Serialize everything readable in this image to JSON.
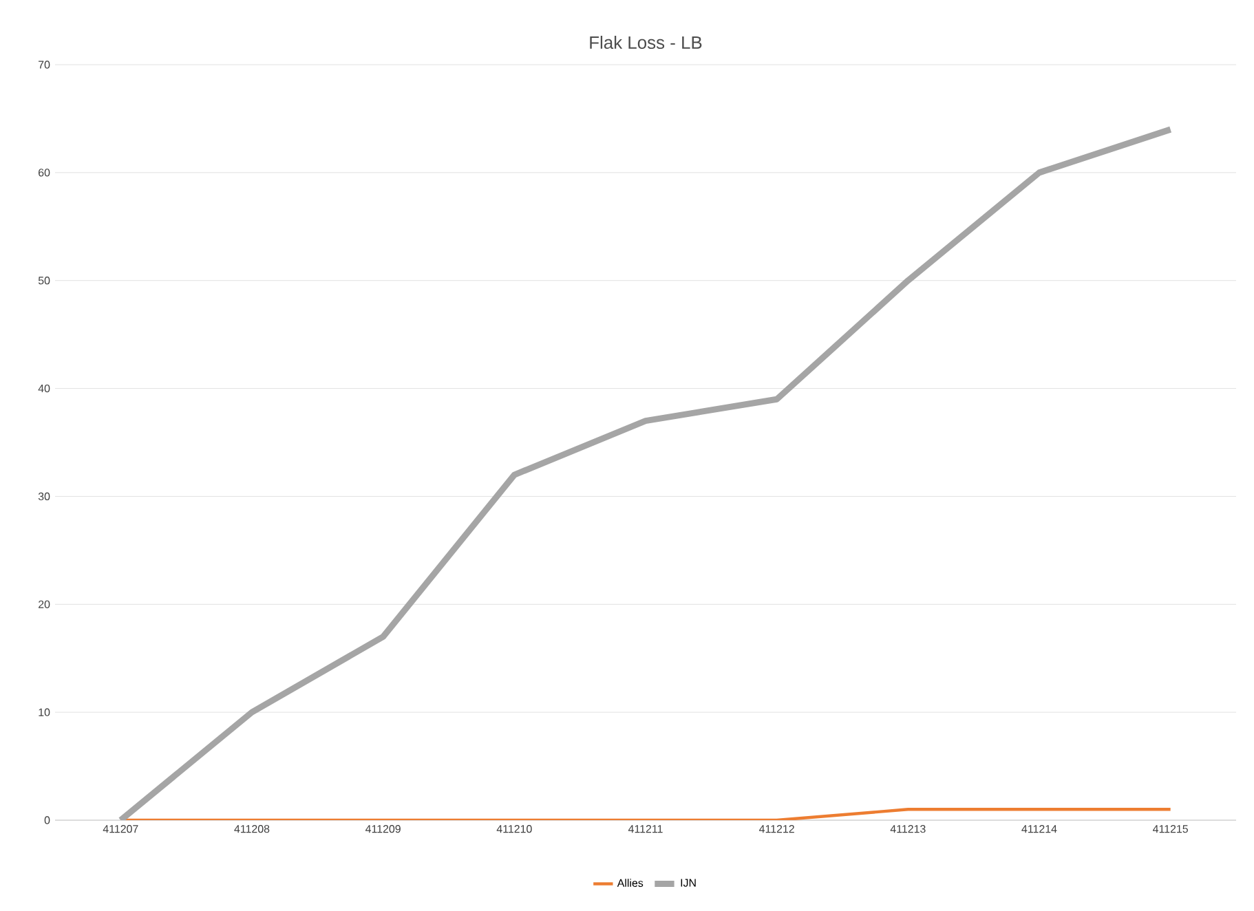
{
  "chart_data": {
    "type": "line",
    "title": "Flak Loss - LB",
    "categories": [
      "411207",
      "411208",
      "411209",
      "411210",
      "411211",
      "411212",
      "411213",
      "411214",
      "411215"
    ],
    "series": [
      {
        "name": "Allies",
        "color": "#ed7d31",
        "values": [
          0,
          0,
          0,
          0,
          0,
          0,
          1,
          1,
          1
        ]
      },
      {
        "name": "IJN",
        "color": "#a5a5a5",
        "values": [
          0,
          10,
          17,
          32,
          37,
          39,
          50,
          60,
          64
        ]
      }
    ],
    "ylim": [
      0,
      70
    ],
    "yticks": [
      0,
      10,
      20,
      30,
      40,
      50,
      60,
      70
    ],
    "grid": "y",
    "legend": "bottom",
    "marker": "none",
    "line_style": "solid"
  }
}
